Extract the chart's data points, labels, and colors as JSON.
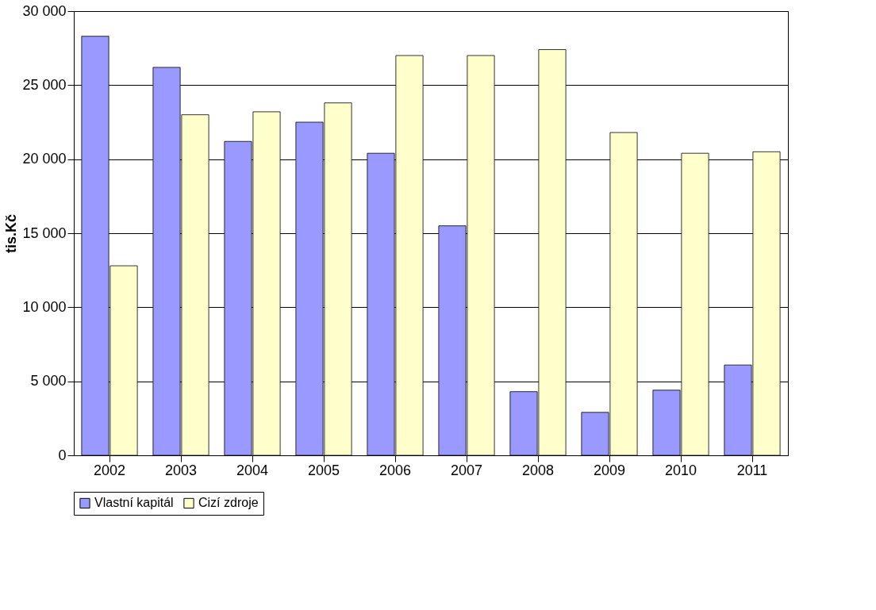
{
  "chart_data": {
    "type": "bar",
    "ylabel": "tis.Kč",
    "categories": [
      "2002",
      "2003",
      "2004",
      "2005",
      "2006",
      "2007",
      "2008",
      "2009",
      "2010",
      "2011"
    ],
    "series": [
      {
        "name": "Vlastní kapitál",
        "color": "#9999ff",
        "values": [
          28300,
          26200,
          21200,
          22500,
          20400,
          15500,
          4300,
          2900,
          4400,
          6100
        ]
      },
      {
        "name": "Cizí zdroje",
        "color": "#ffffcc",
        "values": [
          12800,
          23000,
          23200,
          23800,
          27000,
          27000,
          27400,
          21800,
          20400,
          20500
        ]
      }
    ],
    "ylim": [
      0,
      30000
    ],
    "yticks": [
      {
        "value": 0,
        "label": "0"
      },
      {
        "value": 5000,
        "label": "5 000"
      },
      {
        "value": 10000,
        "label": "10 000"
      },
      {
        "value": 15000,
        "label": "15 000"
      },
      {
        "value": 20000,
        "label": "20 000"
      },
      {
        "value": 25000,
        "label": "25 000"
      },
      {
        "value": 30000,
        "label": "30 000"
      }
    ],
    "grid": "y",
    "legend": "bottom"
  }
}
